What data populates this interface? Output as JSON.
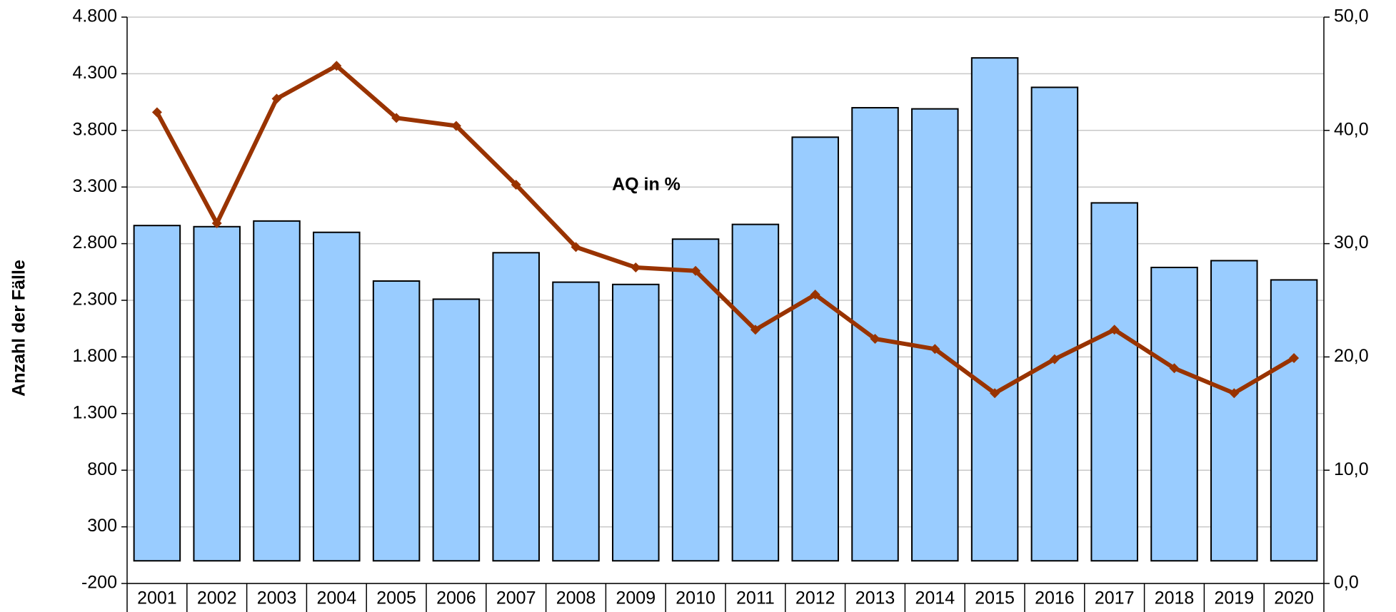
{
  "chart_data": {
    "type": "bar_line",
    "y_axis_label": "Anzahl der Fälle",
    "categories": [
      "2001",
      "2002",
      "2003",
      "2004",
      "2005",
      "2006",
      "2007",
      "2008",
      "2009",
      "2010",
      "2011",
      "2012",
      "2013",
      "2014",
      "2015",
      "2016",
      "2017",
      "2018",
      "2019",
      "2020"
    ],
    "series": [
      {
        "type": "bar",
        "color": "#99ccff",
        "values": [
          2960,
          2950,
          3000,
          2900,
          2470,
          2310,
          2720,
          2460,
          2440,
          2840,
          2970,
          3740,
          4000,
          3990,
          4440,
          4180,
          3160,
          2590,
          2650,
          2480
        ]
      },
      {
        "type": "line",
        "name": "AQ in %",
        "axis": "y2",
        "color": "#993300",
        "values": [
          41.6,
          31.8,
          42.8,
          45.7,
          41.1,
          40.4,
          35.2,
          29.7,
          27.9,
          27.6,
          22.4,
          25.5,
          21.6,
          20.7,
          16.8,
          19.8,
          22.4,
          19.0,
          16.8,
          19.9
        ]
      }
    ],
    "ylim": [
      -200,
      4800
    ],
    "yticks": [
      {
        "value": -200,
        "label": "-200"
      },
      300,
      800,
      {
        "value": 1300,
        "label": "1.300"
      },
      {
        "value": 1800,
        "label": "1.800"
      },
      {
        "value": 2300,
        "label": "2.300"
      },
      {
        "value": 2800,
        "label": "2.800"
      },
      {
        "value": 3300,
        "label": "3.300"
      },
      {
        "value": 3800,
        "label": "3.800"
      },
      {
        "value": 4300,
        "label": "4.300"
      },
      {
        "value": 4800,
        "label": "4.800"
      }
    ],
    "y2lim": [
      0,
      50
    ],
    "y2ticks": [
      {
        "value": 0,
        "label": "0,0"
      },
      {
        "value": 10,
        "label": "10,0"
      },
      {
        "value": 20,
        "label": "20,0"
      },
      {
        "value": 30,
        "label": "30,0"
      },
      {
        "value": 40,
        "label": "40,0"
      },
      {
        "value": 50,
        "label": "50,0"
      }
    ],
    "grid": true
  }
}
